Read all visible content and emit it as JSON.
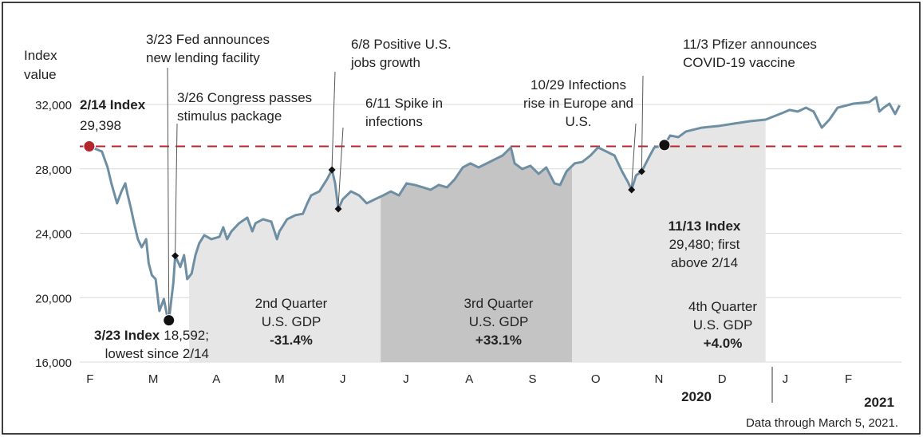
{
  "chart_data": {
    "type": "line",
    "ylabel": [
      "Index",
      "value"
    ],
    "xlim": [
      0.3,
      13.3
    ],
    "ylim": [
      16000,
      32000
    ],
    "xticks": [
      {
        "value": 0.5,
        "label": "F"
      },
      {
        "value": 1.5,
        "label": "M"
      },
      {
        "value": 2.5,
        "label": "A"
      },
      {
        "value": 3.5,
        "label": "M"
      },
      {
        "value": 4.5,
        "label": "J"
      },
      {
        "value": 5.5,
        "label": "J"
      },
      {
        "value": 6.5,
        "label": "A"
      },
      {
        "value": 7.5,
        "label": "S"
      },
      {
        "value": 8.5,
        "label": "O"
      },
      {
        "value": 9.5,
        "label": "N"
      },
      {
        "value": 10.5,
        "label": "D"
      },
      {
        "value": 11.5,
        "label": "J"
      },
      {
        "value": 12.5,
        "label": "F"
      }
    ],
    "yticks": [
      {
        "value": 16000,
        "label": "16,000"
      },
      {
        "value": 20000,
        "label": "20,000"
      },
      {
        "value": 24000,
        "label": "24,000"
      },
      {
        "value": 28000,
        "label": "28,000"
      },
      {
        "value": 32000,
        "label": "32,000"
      }
    ],
    "grid": true,
    "years": [
      "2020",
      "2021"
    ],
    "footnote": "Data through March 5, 2021.",
    "series": [
      {
        "color": "#6e8fa3",
        "x": [
          0.45,
          0.65,
          0.74,
          0.8,
          0.89,
          0.96,
          1.02,
          1.06,
          1.1,
          1.16,
          1.22,
          1.28,
          1.35,
          1.39,
          1.44,
          1.5,
          1.56,
          1.63,
          1.68,
          1.71,
          1.78,
          1.81,
          1.89,
          1.95,
          2.0,
          2.07,
          2.13,
          2.19,
          2.27,
          2.38,
          2.51,
          2.57,
          2.63,
          2.7,
          2.82,
          2.95,
          3.03,
          3.08,
          3.2,
          3.33,
          3.42,
          3.46,
          3.58,
          3.71,
          3.83,
          3.9,
          3.96,
          4.09,
          4.21,
          4.29,
          4.34,
          4.39,
          4.46,
          4.59,
          4.72,
          4.84,
          4.97,
          5.1,
          5.22,
          5.35,
          5.47,
          5.6,
          5.73,
          5.85,
          5.98,
          6.11,
          6.23,
          6.36,
          6.48,
          6.61,
          6.74,
          6.86,
          6.99,
          7.12,
          7.18,
          7.3,
          7.43,
          7.56,
          7.68,
          7.81,
          7.9,
          8.0,
          8.13,
          8.25,
          8.38,
          8.5,
          8.63,
          8.76,
          8.88,
          8.97,
          9.03,
          9.1,
          9.19,
          9.32,
          9.39,
          9.55,
          9.64,
          9.77,
          9.89,
          10.14,
          10.4,
          10.65,
          10.9,
          11.15,
          11.41,
          11.53,
          11.66,
          11.79,
          11.91,
          12.04,
          12.16,
          12.29,
          12.54,
          12.79,
          12.9,
          12.95,
          13.02,
          13.11,
          13.2,
          13.27
        ],
        "values": [
          29398,
          29080,
          28090,
          27100,
          25860,
          26600,
          27100,
          26350,
          25710,
          24620,
          23630,
          23130,
          23630,
          22140,
          21400,
          21150,
          19170,
          19910,
          18920,
          18592,
          20900,
          22600,
          21900,
          22640,
          21150,
          21500,
          22640,
          23380,
          23880,
          23630,
          23780,
          24370,
          23630,
          24120,
          24620,
          24970,
          24120,
          24620,
          24870,
          24720,
          23630,
          24120,
          24870,
          25120,
          25210,
          25860,
          26350,
          26600,
          27340,
          27940,
          27100,
          25510,
          26110,
          26600,
          26350,
          25860,
          26110,
          26350,
          26600,
          26350,
          27100,
          27000,
          26850,
          26700,
          27000,
          26850,
          27340,
          28090,
          28340,
          28090,
          28340,
          28580,
          28830,
          29330,
          28340,
          27990,
          28190,
          27690,
          28090,
          27100,
          27000,
          27840,
          28340,
          28430,
          28830,
          29330,
          29080,
          28830,
          27840,
          27200,
          26700,
          27590,
          27840,
          28830,
          29330,
          29480,
          30070,
          29970,
          30320,
          30560,
          30660,
          30810,
          30960,
          31060,
          31460,
          31660,
          31560,
          31800,
          31560,
          30560,
          31060,
          31800,
          32050,
          32150,
          32450,
          31560,
          31800,
          32050,
          31410,
          31950
        ]
      }
    ],
    "quarters": [
      {
        "lines": [
          "2nd Quarter",
          "U.S. GDP",
          "-31.4%"
        ],
        "start": 2.03,
        "end": 5.06,
        "color": "#e6e6e6"
      },
      {
        "lines": [
          "3rd Quarter",
          "U.S. GDP",
          "+33.1%"
        ],
        "start": 5.06,
        "end": 8.09,
        "color": "#c4c4c4"
      },
      {
        "lines": [
          "4th Quarter",
          "U.S. GDP",
          "+4.0%"
        ],
        "start": 8.09,
        "end": 11.15,
        "color": "#e6e6e6"
      }
    ],
    "annotations": [
      {
        "title": "2/14 Index",
        "lines": [
          "29,398"
        ],
        "x": 0.45,
        "value": 29398,
        "marker": "dot",
        "color": "#b5252d"
      },
      {
        "title": "3/23 Index",
        "lines": [
          "18,592;",
          "lowest since 2/14"
        ],
        "x": 1.71,
        "value": 18592,
        "marker": "dot",
        "color": "#111111"
      },
      {
        "lines": [
          "3/23 Fed announces",
          "new lending facility"
        ]
      },
      {
        "lines": [
          "3/26 Congress passes",
          "stimulus package"
        ],
        "x": 1.81,
        "value": 22600,
        "marker": "diamond",
        "color": "#111111"
      },
      {
        "lines": [
          "6/8 Positive U.S.",
          "jobs growth"
        ],
        "x": 4.29,
        "value": 27940,
        "marker": "diamond",
        "color": "#111111"
      },
      {
        "lines": [
          "6/11 Spike in",
          "infections"
        ],
        "x": 4.39,
        "value": 25510,
        "marker": "diamond",
        "color": "#111111"
      },
      {
        "lines": [
          "10/29 Infections",
          "rise in Europe and",
          "U.S."
        ],
        "x": 9.03,
        "value": 26700,
        "marker": "diamond",
        "color": "#111111"
      },
      {
        "lines": [
          "11/3 Pfizer announces",
          "COVID-19 vaccine"
        ],
        "x": 9.19,
        "value": 27840,
        "marker": "diamond",
        "color": "#111111"
      },
      {
        "title": "11/13 Index",
        "lines": [
          "29,480; first",
          "above 2/14"
        ],
        "x": 9.55,
        "value": 29480,
        "marker": "dot",
        "color": "#111111"
      }
    ]
  }
}
